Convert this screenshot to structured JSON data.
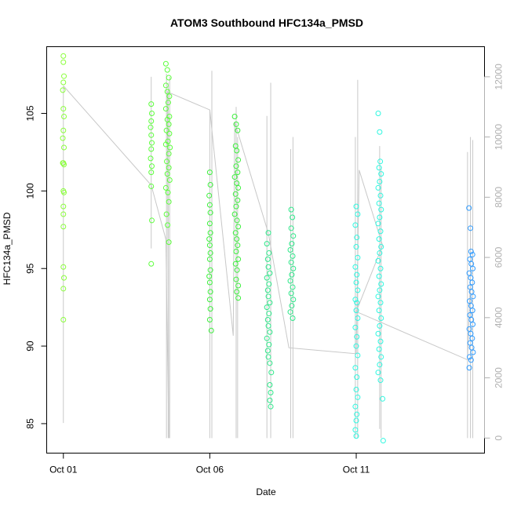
{
  "chart_data": {
    "type": "scatter",
    "title": "ATOM3 Southbound HFC134a_PMSD",
    "xlabel": "Date",
    "ylabel": "HFC134a_PMSD",
    "x_ticks": [
      "Oct 01",
      "Oct 06",
      "Oct 11"
    ],
    "x_tick_values": [
      1,
      6,
      11
    ],
    "xlim": [
      0.43,
      15.38
    ],
    "ylim": [
      83.1,
      109.3
    ],
    "y_ticks": [
      85,
      90,
      95,
      100,
      105
    ],
    "y2lim": [
      -500,
      13000
    ],
    "y2_ticks": [
      0,
      2000,
      4000,
      6000,
      8000,
      10000,
      12000
    ],
    "y2_label": "",
    "grid": false,
    "legend": "none",
    "colors": {
      "gradient": [
        "#9aff3c",
        "#3cff3c",
        "#2ee88a",
        "#27ffee",
        "#2a9bff"
      ],
      "altitude_line": "#c8c8c8",
      "secondary_axis": "#b0b0b0"
    },
    "series": [
      {
        "color": "#8bff3c",
        "points": [
          [
            1.0,
            108.7
          ],
          [
            1.0,
            108.3
          ],
          [
            1.02,
            107.4
          ],
          [
            1.0,
            107.0
          ],
          [
            0.98,
            106.5
          ],
          [
            1.0,
            105.3
          ],
          [
            1.02,
            104.8
          ],
          [
            1.0,
            103.9
          ],
          [
            0.98,
            103.4
          ],
          [
            1.02,
            102.8
          ],
          [
            1.0,
            101.8
          ],
          [
            0.98,
            101.8
          ],
          [
            1.02,
            101.7
          ],
          [
            1.0,
            100.0
          ],
          [
            1.02,
            99.9
          ],
          [
            1.0,
            99.0
          ],
          [
            1.0,
            98.5
          ],
          [
            1.0,
            97.7
          ],
          [
            1.0,
            95.1
          ],
          [
            1.02,
            94.4
          ],
          [
            1.0,
            93.7
          ],
          [
            1.0,
            91.7
          ]
        ]
      },
      {
        "color": "#5cff3c",
        "points": [
          [
            4.0,
            105.6
          ],
          [
            4.02,
            105.0
          ],
          [
            4.0,
            104.5
          ],
          [
            3.98,
            104.1
          ],
          [
            4.0,
            103.6
          ],
          [
            4.02,
            103.1
          ],
          [
            4.0,
            102.7
          ],
          [
            3.98,
            102.1
          ],
          [
            4.02,
            101.6
          ],
          [
            4.0,
            101.2
          ],
          [
            4.0,
            100.3
          ],
          [
            4.02,
            98.1
          ],
          [
            4.0,
            95.3
          ],
          [
            4.5,
            108.2
          ],
          [
            4.55,
            107.8
          ],
          [
            4.6,
            107.3
          ],
          [
            4.5,
            106.8
          ],
          [
            4.55,
            106.4
          ],
          [
            4.62,
            106.1
          ],
          [
            4.58,
            105.7
          ],
          [
            4.5,
            105.3
          ],
          [
            4.62,
            104.8
          ],
          [
            4.55,
            104.6
          ],
          [
            4.6,
            104.3
          ],
          [
            4.52,
            103.9
          ],
          [
            4.62,
            103.7
          ],
          [
            4.57,
            103.2
          ],
          [
            4.5,
            103.0
          ],
          [
            4.64,
            102.8
          ],
          [
            4.6,
            102.4
          ],
          [
            4.53,
            101.9
          ],
          [
            4.6,
            101.5
          ],
          [
            4.55,
            101.1
          ],
          [
            4.63,
            100.7
          ],
          [
            4.5,
            100.2
          ],
          [
            4.57,
            99.9
          ],
          [
            4.6,
            99.3
          ],
          [
            4.52,
            98.5
          ],
          [
            4.56,
            97.8
          ],
          [
            4.6,
            96.7
          ]
        ]
      },
      {
        "color": "#3cf03c",
        "points": [
          [
            6.0,
            101.2
          ],
          [
            6.02,
            100.4
          ],
          [
            5.98,
            99.7
          ],
          [
            6.0,
            99.1
          ],
          [
            6.02,
            98.6
          ],
          [
            6.0,
            97.9
          ],
          [
            6.02,
            97.3
          ],
          [
            5.98,
            96.9
          ],
          [
            6.0,
            96.5
          ],
          [
            6.02,
            96.0
          ],
          [
            6.0,
            95.6
          ],
          [
            6.02,
            94.9
          ],
          [
            5.98,
            94.5
          ],
          [
            6.0,
            94.1
          ],
          [
            6.02,
            93.5
          ],
          [
            6.0,
            93.0
          ],
          [
            6.02,
            92.4
          ],
          [
            6.0,
            91.7
          ],
          [
            6.05,
            91.0
          ],
          [
            6.85,
            104.8
          ],
          [
            6.9,
            104.3
          ],
          [
            6.95,
            103.9
          ],
          [
            6.88,
            102.9
          ],
          [
            6.92,
            102.6
          ],
          [
            6.97,
            102.0
          ],
          [
            6.9,
            101.6
          ],
          [
            6.95,
            101.2
          ],
          [
            6.85,
            100.9
          ],
          [
            6.92,
            100.5
          ],
          [
            6.97,
            100.2
          ],
          [
            6.88,
            99.8
          ],
          [
            6.95,
            99.4
          ],
          [
            6.9,
            99.0
          ],
          [
            6.85,
            98.5
          ],
          [
            6.93,
            98.1
          ],
          [
            6.97,
            97.7
          ],
          [
            6.88,
            97.3
          ],
          [
            6.92,
            96.9
          ],
          [
            6.95,
            96.5
          ],
          [
            6.9,
            96.1
          ],
          [
            6.97,
            95.6
          ],
          [
            6.88,
            95.3
          ],
          [
            6.93,
            94.9
          ],
          [
            6.9,
            94.3
          ],
          [
            6.97,
            93.9
          ],
          [
            6.92,
            93.5
          ],
          [
            6.97,
            93.1
          ]
        ]
      },
      {
        "color": "#2ee88a",
        "points": [
          [
            8.0,
            97.3
          ],
          [
            7.95,
            96.6
          ],
          [
            8.02,
            96.0
          ],
          [
            7.98,
            95.6
          ],
          [
            8.0,
            95.1
          ],
          [
            8.05,
            94.7
          ],
          [
            7.95,
            94.4
          ],
          [
            8.02,
            94.0
          ],
          [
            7.98,
            93.6
          ],
          [
            8.0,
            93.2
          ],
          [
            8.05,
            92.8
          ],
          [
            7.95,
            92.5
          ],
          [
            8.02,
            92.1
          ],
          [
            7.98,
            91.7
          ],
          [
            8.0,
            91.3
          ],
          [
            8.05,
            90.9
          ],
          [
            7.95,
            90.5
          ],
          [
            8.02,
            90.1
          ],
          [
            7.98,
            89.7
          ],
          [
            8.0,
            89.3
          ],
          [
            8.05,
            88.9
          ],
          [
            8.1,
            88.3
          ],
          [
            8.05,
            87.5
          ],
          [
            8.08,
            87.0
          ],
          [
            8.05,
            86.5
          ],
          [
            8.08,
            86.1
          ],
          [
            8.78,
            98.8
          ],
          [
            8.82,
            98.3
          ],
          [
            8.78,
            97.6
          ],
          [
            8.85,
            97.1
          ],
          [
            8.8,
            96.6
          ],
          [
            8.75,
            96.2
          ],
          [
            8.83,
            95.8
          ],
          [
            8.78,
            95.4
          ],
          [
            8.85,
            95.0
          ],
          [
            8.8,
            94.6
          ],
          [
            8.75,
            94.2
          ],
          [
            8.83,
            93.8
          ],
          [
            8.78,
            93.4
          ],
          [
            8.85,
            93.0
          ],
          [
            8.8,
            92.6
          ],
          [
            8.75,
            92.2
          ],
          [
            8.83,
            91.8
          ]
        ]
      },
      {
        "color": "#2ff7e0",
        "points": [
          [
            11.0,
            99.0
          ],
          [
            11.05,
            98.5
          ],
          [
            10.97,
            97.8
          ],
          [
            11.02,
            97.0
          ],
          [
            11.0,
            96.4
          ],
          [
            11.05,
            95.7
          ],
          [
            10.97,
            95.1
          ],
          [
            11.02,
            94.6
          ],
          [
            11.0,
            94.1
          ],
          [
            11.05,
            93.6
          ],
          [
            10.97,
            93.0
          ],
          [
            11.02,
            92.8
          ],
          [
            11.0,
            92.3
          ],
          [
            11.05,
            91.8
          ],
          [
            10.97,
            91.2
          ],
          [
            11.02,
            90.6
          ],
          [
            11.0,
            90.0
          ],
          [
            11.05,
            89.4
          ],
          [
            10.97,
            88.6
          ],
          [
            11.02,
            88.0
          ],
          [
            11.0,
            87.2
          ],
          [
            11.05,
            86.7
          ],
          [
            10.97,
            86.1
          ],
          [
            11.02,
            85.6
          ],
          [
            11.0,
            85.2
          ],
          [
            10.97,
            84.6
          ],
          [
            11.0,
            84.2
          ],
          [
            11.75,
            105.0
          ],
          [
            11.8,
            103.8
          ],
          [
            11.82,
            101.9
          ],
          [
            11.78,
            101.5
          ],
          [
            11.85,
            101.1
          ],
          [
            11.8,
            100.6
          ],
          [
            11.75,
            100.2
          ],
          [
            11.83,
            99.7
          ],
          [
            11.78,
            99.2
          ],
          [
            11.85,
            98.8
          ],
          [
            11.8,
            98.3
          ],
          [
            11.75,
            97.9
          ],
          [
            11.83,
            97.4
          ],
          [
            11.78,
            96.9
          ],
          [
            11.85,
            96.4
          ],
          [
            11.8,
            96.0
          ],
          [
            11.75,
            95.5
          ],
          [
            11.83,
            95.0
          ],
          [
            11.78,
            94.5
          ],
          [
            11.85,
            94.0
          ],
          [
            11.8,
            93.6
          ],
          [
            11.75,
            93.2
          ],
          [
            11.83,
            92.8
          ],
          [
            11.78,
            92.3
          ],
          [
            11.85,
            91.8
          ],
          [
            11.8,
            91.3
          ],
          [
            11.75,
            90.8
          ],
          [
            11.83,
            90.3
          ],
          [
            11.78,
            89.8
          ],
          [
            11.85,
            89.3
          ],
          [
            11.8,
            88.8
          ],
          [
            11.75,
            88.3
          ],
          [
            11.83,
            87.8
          ],
          [
            11.9,
            86.6
          ],
          [
            11.92,
            83.9
          ]
        ]
      },
      {
        "color": "#2f9bff",
        "points": [
          [
            14.85,
            98.9
          ],
          [
            14.9,
            97.6
          ],
          [
            14.92,
            96.1
          ],
          [
            14.97,
            95.9
          ],
          [
            14.88,
            95.6
          ],
          [
            14.93,
            95.3
          ],
          [
            14.98,
            95.0
          ],
          [
            14.86,
            94.7
          ],
          [
            14.91,
            94.4
          ],
          [
            14.96,
            94.1
          ],
          [
            14.89,
            93.8
          ],
          [
            14.94,
            93.5
          ],
          [
            14.99,
            93.2
          ],
          [
            14.87,
            92.9
          ],
          [
            14.92,
            92.6
          ],
          [
            14.97,
            92.3
          ],
          [
            14.88,
            92.0
          ],
          [
            14.93,
            91.7
          ],
          [
            14.98,
            91.4
          ],
          [
            14.86,
            91.1
          ],
          [
            14.91,
            90.8
          ],
          [
            14.96,
            90.5
          ],
          [
            14.89,
            90.2
          ],
          [
            14.94,
            89.9
          ],
          [
            14.99,
            89.6
          ],
          [
            14.87,
            89.3
          ],
          [
            14.92,
            89.1
          ],
          [
            14.86,
            88.6
          ]
        ]
      }
    ],
    "altitude_traces": [
      {
        "x": 1.0,
        "min": 500,
        "max": 11700
      },
      {
        "x": 4.0,
        "min": 6300,
        "max": 12000
      },
      {
        "x": 4.52,
        "min": 0,
        "max": 12100
      },
      {
        "x": 4.58,
        "min": 0,
        "max": 11800
      },
      {
        "x": 4.63,
        "min": 0,
        "max": 12000
      },
      {
        "x": 6.0,
        "min": 0,
        "max": 10900
      },
      {
        "x": 6.07,
        "min": 0,
        "max": 12200
      },
      {
        "x": 6.9,
        "min": 0,
        "max": 11000
      },
      {
        "x": 6.95,
        "min": 0,
        "max": 10000
      },
      {
        "x": 7.95,
        "min": 0,
        "max": 10700
      },
      {
        "x": 8.08,
        "min": 0,
        "max": 11800
      },
      {
        "x": 8.76,
        "min": 0,
        "max": 9600
      },
      {
        "x": 8.84,
        "min": 0,
        "max": 10000
      },
      {
        "x": 10.97,
        "min": 0,
        "max": 10000
      },
      {
        "x": 11.05,
        "min": 0,
        "max": 11900
      },
      {
        "x": 11.8,
        "min": 300,
        "max": 9700
      },
      {
        "x": 11.85,
        "min": 0,
        "max": 9000
      },
      {
        "x": 14.8,
        "min": 0,
        "max": 9500
      },
      {
        "x": 14.9,
        "min": 0,
        "max": 10000
      },
      {
        "x": 14.98,
        "min": 0,
        "max": 9900
      }
    ],
    "altitude_path": [
      [
        1.0,
        11700
      ],
      [
        4.0,
        8400
      ],
      [
        4.5,
        6600
      ],
      [
        4.6,
        0
      ],
      [
        4.55,
        11500
      ],
      [
        6.0,
        10900
      ],
      [
        6.8,
        3400
      ],
      [
        6.85,
        10500
      ],
      [
        8.0,
        6800
      ],
      [
        8.7,
        3000
      ],
      [
        11.0,
        2800
      ],
      [
        11.1,
        8900
      ],
      [
        11.9,
        6400
      ],
      [
        11.0,
        4200
      ],
      [
        14.8,
        2600
      ],
      [
        14.9,
        5300
      ]
    ]
  }
}
